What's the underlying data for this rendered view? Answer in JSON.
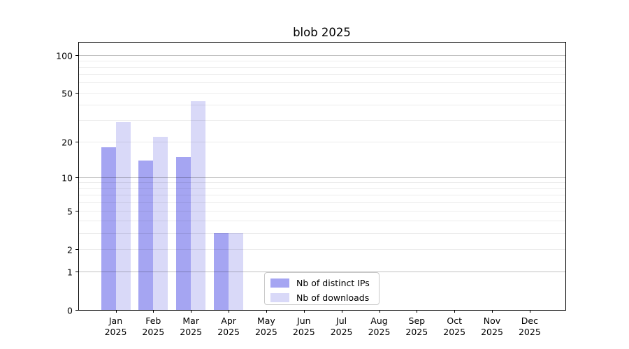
{
  "title": "blob 2025",
  "chart_data": {
    "type": "bar",
    "title": "blob 2025",
    "categories": [
      "Jan",
      "Feb",
      "Mar",
      "Apr",
      "May",
      "Jun",
      "Jul",
      "Aug",
      "Sep",
      "Oct",
      "Nov",
      "Dec"
    ],
    "category_year": "2025",
    "series": [
      {
        "name": "Nb of distinct IPs",
        "key": "distinct-ips",
        "color": "#a5a5f2",
        "values": [
          18,
          14,
          15,
          3,
          0,
          0,
          0,
          0,
          0,
          0,
          0,
          0
        ]
      },
      {
        "name": "Nb of downloads",
        "key": "downloads",
        "color": "#d9d9f8",
        "values": [
          29,
          22,
          43,
          3,
          0,
          0,
          0,
          0,
          0,
          0,
          0,
          0
        ]
      }
    ],
    "yscale": "log10(1+v)",
    "ylim": [
      0,
      127
    ],
    "ytick_labels": [
      0,
      1,
      2,
      5,
      10,
      20,
      50,
      100
    ],
    "ytick_major_gridlines": [
      1,
      10,
      100
    ],
    "ytick_minor_gridlines": [
      2,
      3,
      4,
      5,
      6,
      7,
      8,
      9,
      20,
      30,
      40,
      50,
      60,
      70,
      80,
      90
    ],
    "grid": true,
    "legend_position": "lower center",
    "colors": {
      "axis": "#000000",
      "grid_major": "#c2c2c2",
      "grid_minor": "#ebebeb",
      "background": "#ffffff"
    }
  }
}
